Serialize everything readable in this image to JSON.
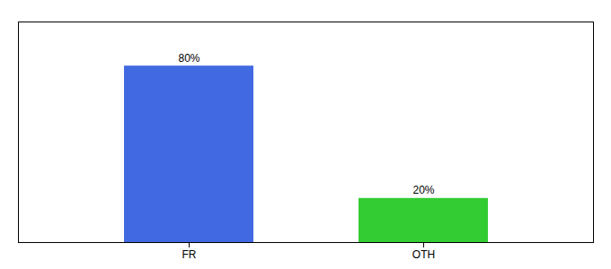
{
  "chart_data": {
    "type": "bar",
    "categories": [
      "FR",
      "OTH"
    ],
    "values": [
      80,
      20
    ],
    "colors": [
      "#4169e1",
      "#33cc33"
    ],
    "ylim": [
      0,
      100
    ],
    "data_labels": true,
    "value_labels": [
      "80%",
      "20%"
    ],
    "tick_labels": "x"
  }
}
